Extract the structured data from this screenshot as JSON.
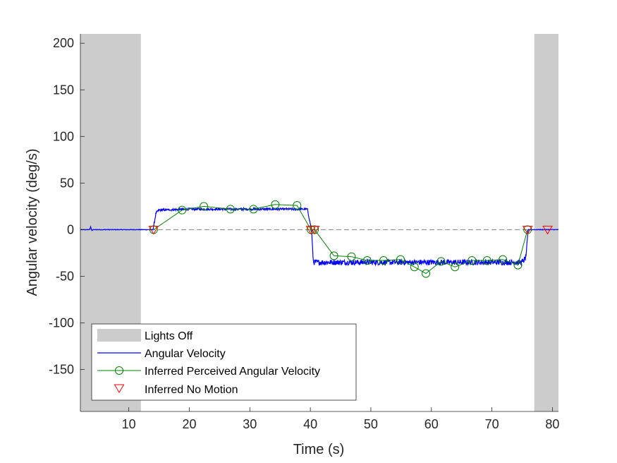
{
  "chart_data": {
    "type": "line",
    "xlabel": "Time (s)",
    "ylabel": "Angular velocity (deg/s)",
    "xlim": [
      2,
      81
    ],
    "ylim": [
      -195,
      210
    ],
    "xticks": [
      10,
      20,
      30,
      40,
      50,
      60,
      70,
      80
    ],
    "yticks": [
      -150,
      -100,
      -50,
      0,
      50,
      100,
      150,
      200
    ],
    "grid": false,
    "legend_position": "bottom-left",
    "colors": {
      "lights_off": "#cccccc",
      "angular_velocity": "#0000ff",
      "perceived": "#008000",
      "no_motion": "#ff0000",
      "zero_line": "#808080"
    },
    "lights_off_intervals": [
      [
        2,
        12
      ],
      [
        77,
        81
      ]
    ],
    "reference_line_y": 0,
    "series": [
      {
        "name": "Angular Velocity",
        "style": "line",
        "noise": 3,
        "x": [
          2,
          3.5,
          3.7,
          3.9,
          4.1,
          4.5,
          14,
          14.5,
          15,
          20,
          30,
          38,
          39.5,
          40.2,
          40.5,
          60,
          75,
          75.6,
          76,
          81
        ],
        "y": [
          0,
          0,
          3,
          -1,
          0,
          0,
          0,
          18,
          21,
          22,
          22,
          22,
          22,
          0,
          -35,
          -35,
          -35,
          -30,
          0,
          0
        ]
      },
      {
        "name": "Inferred Perceived Angular Velocity",
        "style": "line-circle",
        "x": [
          14.1,
          18.8,
          22.4,
          26.8,
          30.6,
          34.2,
          37.8,
          40.1,
          40.7,
          43.9,
          46.8,
          49.4,
          52.1,
          54.9,
          57.2,
          59.1,
          61.6,
          63.9,
          66.7,
          69.2,
          71.8,
          74.3,
          75.9
        ],
        "y": [
          0,
          21,
          25,
          22,
          22,
          27,
          26,
          0,
          0,
          -28,
          -29,
          -33,
          -33,
          -32,
          -40,
          -47,
          -34,
          -40,
          -33,
          -33,
          -32,
          -38,
          0
        ]
      },
      {
        "name": "Inferred No Motion",
        "style": "marker-triangle",
        "x": [
          14.1,
          40.1,
          40.7,
          75.9,
          79.2
        ],
        "y": [
          0,
          0,
          0,
          0,
          0
        ]
      }
    ],
    "legend": [
      {
        "label": "Lights Off",
        "kind": "patch"
      },
      {
        "label": "Angular Velocity",
        "kind": "line"
      },
      {
        "label": "Inferred Perceived Angular Velocity",
        "kind": "line-circle"
      },
      {
        "label": "Inferred No Motion",
        "kind": "triangle"
      }
    ]
  }
}
